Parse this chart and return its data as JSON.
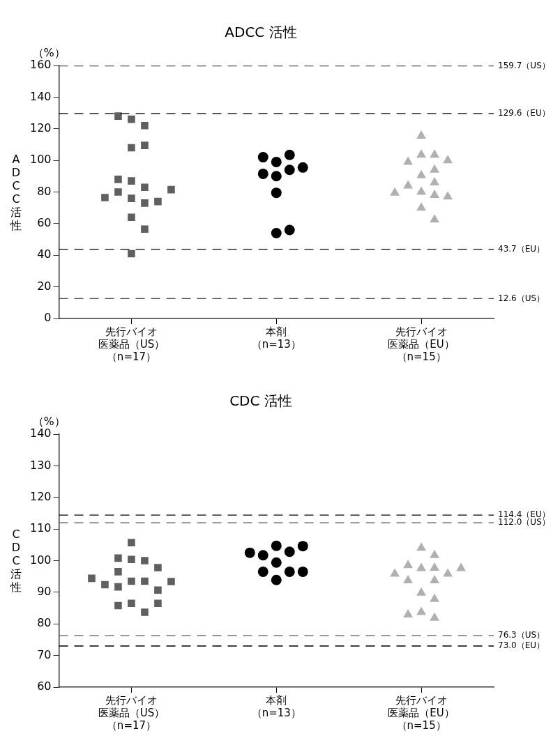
{
  "chart_data": [
    {
      "type": "scatter",
      "title": "ADCC 活性",
      "ylabel": "ADCC活性",
      "annotations": [
        "（%）"
      ],
      "categories": [
        "先行バイオ医薬品（US）（n=17）",
        "本剤（n=13）",
        "先行バイオ医薬品（EU）（n=15）"
      ],
      "ylim": [
        0,
        160
      ],
      "yticks": [
        0,
        20,
        40,
        60,
        80,
        100,
        120,
        140,
        160
      ],
      "grid": false,
      "legend": false,
      "series": [
        {
          "color": "#5f5f5f",
          "marker": "square",
          "x": [
            "先行バイオ医薬品（US）（n=17）",
            "先行バイオ医薬品（US）（n=17）",
            "先行バイオ医薬品（US）（n=17）",
            "先行バイオ医薬品（US）（n=17）",
            "先行バイオ医薬品（US）（n=17）",
            "先行バイオ医薬品（US）（n=17）",
            "先行バイオ医薬品（US）（n=17）",
            "先行バイオ医薬品（US）（n=17）",
            "先行バイオ医薬品（US）（n=17）",
            "先行バイオ医薬品（US）（n=17）",
            "先行バイオ医薬品（US）（n=17）",
            "先行バイオ医薬品（US）（n=17）",
            "先行バイオ医薬品（US）（n=17）",
            "先行バイオ医薬品（US）（n=17）",
            "先行バイオ医薬品（US）（n=17）",
            "先行バイオ医薬品（US）（n=17）",
            "先行バイオ医薬品（US）（n=17）"
          ],
          "values": [
            126,
            122,
            128,
            108,
            109.5,
            87,
            83,
            88,
            80,
            76,
            73,
            74,
            76.5,
            81.5,
            64,
            56.5,
            41
          ]
        },
        {
          "color": "#000000",
          "marker": "circle",
          "x": [
            "本剤（n=13）",
            "本剤（n=13）",
            "本剤（n=13）",
            "本剤（n=13）",
            "本剤（n=13）",
            "本剤（n=13）",
            "本剤（n=13）",
            "本剤（n=13）",
            "本剤（n=13）",
            "本剤（n=13）"
          ],
          "values": [
            99,
            103.5,
            102,
            94,
            90,
            91.5,
            95.5,
            79.5,
            54,
            56
          ]
        },
        {
          "color": "#b0b0b0",
          "marker": "triangle",
          "x": [
            "先行バイオ医薬品（EU）（n=15）",
            "先行バイオ医薬品（EU）（n=15）",
            "先行バイオ医薬品（EU）（n=15）",
            "先行バイオ医薬品（EU）（n=15）",
            "先行バイオ医薬品（EU）（n=15）",
            "先行バイオ医薬品（EU）（n=15）",
            "先行バイオ医薬品（EU）（n=15）",
            "先行バイオ医薬品（EU）（n=15）",
            "先行バイオ医薬品（EU）（n=15）",
            "先行バイオ医薬品（EU）（n=15）",
            "先行バイオ医薬品（EU）（n=15）",
            "先行バイオ医薬品（EU）（n=15）",
            "先行バイオ医薬品（EU）（n=15）",
            "先行バイオ医薬品（EU）（n=15）",
            "先行バイオ医薬品（EU）（n=15）"
          ],
          "values": [
            115.5,
            103.5,
            103.5,
            99,
            100,
            90.5,
            94,
            86,
            84,
            80,
            78,
            77,
            79.5,
            70,
            62.5
          ]
        }
      ],
      "ref_lines": [
        {
          "axis": "y",
          "value": 159.7,
          "label": "159.7（US）",
          "color": "#555555",
          "line_style": "dashed"
        },
        {
          "axis": "y",
          "value": 129.6,
          "label": "129.6（EU）",
          "color": "#000000",
          "line_style": "dashed"
        },
        {
          "axis": "y",
          "value": 43.7,
          "label": "43.7（EU）",
          "color": "#000000",
          "line_style": "dashed"
        },
        {
          "axis": "y",
          "value": 12.6,
          "label": "12.6（US）",
          "color": "#555555",
          "line_style": "dashed"
        }
      ]
    },
    {
      "type": "scatter",
      "title": "CDC 活性",
      "ylabel": "CDC活性",
      "annotations": [
        "（%）"
      ],
      "categories": [
        "先行バイオ医薬品（US）（n=17）",
        "本剤（n=13）",
        "先行バイオ医薬品（EU）（n=15）"
      ],
      "ylim": [
        60,
        140
      ],
      "yticks": [
        60,
        70,
        80,
        90,
        100,
        110,
        120,
        130,
        140
      ],
      "grid": false,
      "legend": false,
      "series": [
        {
          "color": "#5f5f5f",
          "marker": "square",
          "x": [
            "先行バイオ医薬品（US）（n=17）",
            "先行バイオ医薬品（US）（n=17）",
            "先行バイオ医薬品（US）（n=17）",
            "先行バイオ医薬品（US）（n=17）",
            "先行バイオ医薬品（US）（n=17）",
            "先行バイオ医薬品（US）（n=17）",
            "先行バイオ医薬品（US）（n=17）",
            "先行バイオ医薬品（US）（n=17）",
            "先行バイオ医薬品（US）（n=17）",
            "先行バイオ医薬品（US）（n=17）",
            "先行バイオ医薬品（US）（n=17）",
            "先行バイオ医薬品（US）（n=17）",
            "先行バイオ医薬品（US）（n=17）",
            "先行バイオ医薬品（US）（n=17）",
            "先行バイオ医薬品（US）（n=17）",
            "先行バイオ医薬品（US）（n=17）",
            "先行バイオ医薬品（US）（n=17）"
          ],
          "values": [
            105.7,
            100.4,
            100,
            100.8,
            96.5,
            97.8,
            93.5,
            93.5,
            91.7,
            90.7,
            92.4,
            93.4,
            94.4,
            86.5,
            83.7,
            85.8,
            86.5
          ]
        },
        {
          "color": "#000000",
          "marker": "circle",
          "x": [
            "本剤（n=13）",
            "本剤（n=13）",
            "本剤（n=13）",
            "本剤（n=13）",
            "本剤（n=13）",
            "本剤（n=13）",
            "本剤（n=13）",
            "本剤（n=13）",
            "本剤（n=13）",
            "本剤（n=13）"
          ],
          "values": [
            104.7,
            102.8,
            101.7,
            104.6,
            102.5,
            99.4,
            96.5,
            93.9,
            96.5,
            96.5
          ]
        },
        {
          "color": "#b0b0b0",
          "marker": "triangle",
          "x": [
            "先行バイオ医薬品（EU）（n=15）",
            "先行バイオ医薬品（EU）（n=15）",
            "先行バイオ医薬品（EU）（n=15）",
            "先行バイオ医薬品（EU）（n=15）",
            "先行バイオ医薬品（EU）（n=15）",
            "先行バイオ医薬品（EU）（n=15）",
            "先行バイオ医薬品（EU）（n=15）",
            "先行バイオ医薬品（EU）（n=15）",
            "先行バイオ医薬品（EU）（n=15）",
            "先行バイオ医薬品（EU）（n=15）",
            "先行バイオ医薬品（EU）（n=15）",
            "先行バイオ医薬品（EU）（n=15）",
            "先行バイオ医薬品（EU）（n=15）",
            "先行バイオ医薬品（EU）（n=15）",
            "先行バイオ医薬品（EU）（n=15）"
          ],
          "values": [
            104,
            101.7,
            97.6,
            97.7,
            98.5,
            95.8,
            93.7,
            93.7,
            95.8,
            97.6,
            89.8,
            87.8,
            83.7,
            81.9,
            82.9
          ]
        }
      ],
      "ref_lines": [
        {
          "axis": "y",
          "value": 114.4,
          "label": "114.4（EU）",
          "color": "#000000",
          "line_style": "dashed"
        },
        {
          "axis": "y",
          "value": 112.0,
          "label": "112.0（US）",
          "color": "#555555",
          "line_style": "dashed"
        },
        {
          "axis": "y",
          "value": 76.3,
          "label": "76.3（US）",
          "color": "#555555",
          "line_style": "dashed"
        },
        {
          "axis": "y",
          "value": 73.0,
          "label": "73.0（EU）",
          "color": "#000000",
          "line_style": "dashed"
        }
      ]
    }
  ]
}
